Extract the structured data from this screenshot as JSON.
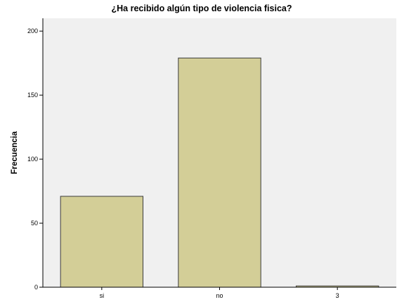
{
  "chart_data": {
    "type": "bar",
    "title": "¿Ha recibido algún tipo de violencia fisica?",
    "xlabel": "",
    "ylabel": "Frecuencia",
    "categories": [
      "si",
      "no",
      "3"
    ],
    "values": [
      71,
      179,
      1
    ],
    "ylim": [
      0,
      210
    ],
    "yticks": [
      0,
      50,
      100,
      150,
      200
    ],
    "grid": false,
    "legend": "none",
    "colors": {
      "plot_background": "#f0f0f0",
      "bar_fill": "#d3ce97",
      "bar_stroke": "#3c3c3c",
      "axis": "#000000"
    }
  }
}
